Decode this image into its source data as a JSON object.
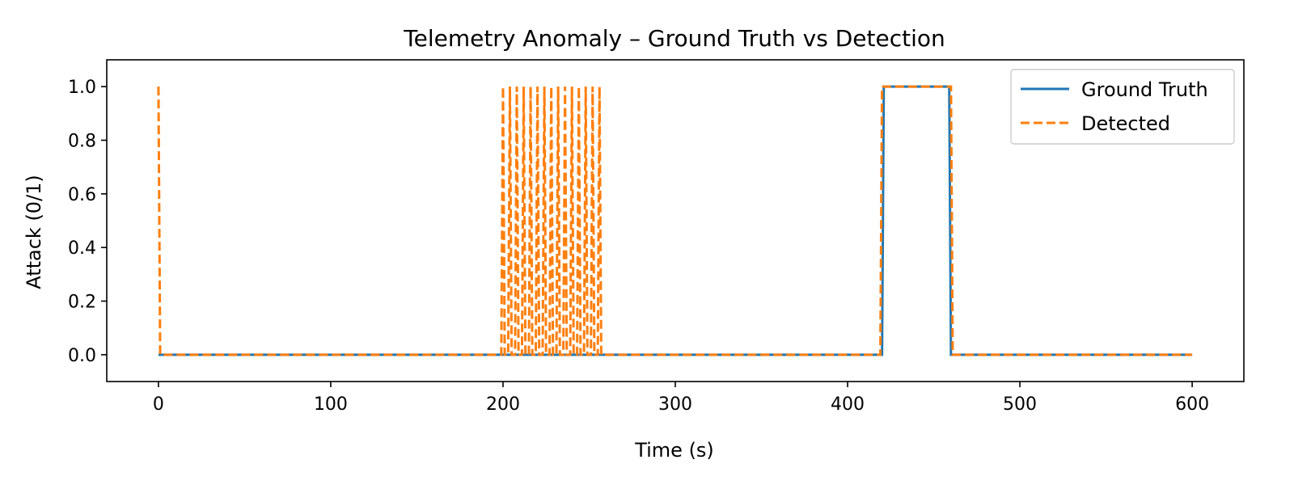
{
  "chart_data": {
    "type": "line",
    "title": "Telemetry Anomaly – Ground Truth vs Detection",
    "xlabel": "Time (s)",
    "ylabel": "Attack (0/1)",
    "xlim": [
      -30,
      630
    ],
    "ylim": [
      -0.1,
      1.1
    ],
    "xticks": [
      0,
      100,
      200,
      300,
      400,
      500,
      600
    ],
    "yticks": [
      0.0,
      0.2,
      0.4,
      0.6,
      0.8,
      1.0
    ],
    "xtick_labels": [
      "0",
      "100",
      "200",
      "300",
      "400",
      "500",
      "600"
    ],
    "ytick_labels": [
      "0.0",
      "0.2",
      "0.4",
      "0.6",
      "0.8",
      "1.0"
    ],
    "grid": false,
    "legend_position": "upper right",
    "series": [
      {
        "name": "Ground Truth",
        "color": "#1f77b4",
        "style": "solid",
        "x": [
          0,
          420,
          421,
          459,
          460,
          600
        ],
        "y": [
          0,
          0,
          1,
          1,
          0,
          0
        ]
      },
      {
        "name": "Detected",
        "color": "#ff7f0e",
        "style": "dashed",
        "x": [
          0,
          1,
          199,
          200,
          201,
          203,
          204,
          205,
          207,
          208,
          209,
          211,
          212,
          213,
          215,
          216,
          217,
          219,
          220,
          221,
          223,
          224,
          225,
          227,
          228,
          229,
          231,
          232,
          233,
          235,
          236,
          237,
          239,
          240,
          241,
          243,
          244,
          245,
          247,
          248,
          249,
          251,
          252,
          253,
          255,
          256,
          257,
          419,
          420,
          460,
          461,
          600
        ],
        "y": [
          1,
          0,
          0,
          1,
          0,
          0,
          1,
          0,
          0,
          1,
          0,
          0,
          1,
          0,
          0,
          1,
          0,
          0,
          1,
          0,
          0,
          1,
          0,
          0,
          1,
          0,
          0,
          1,
          0,
          0,
          1,
          0,
          0,
          1,
          0,
          0,
          1,
          0,
          0,
          1,
          0,
          0,
          1,
          0,
          0,
          1,
          0,
          0,
          1,
          1,
          0,
          0
        ]
      }
    ]
  }
}
